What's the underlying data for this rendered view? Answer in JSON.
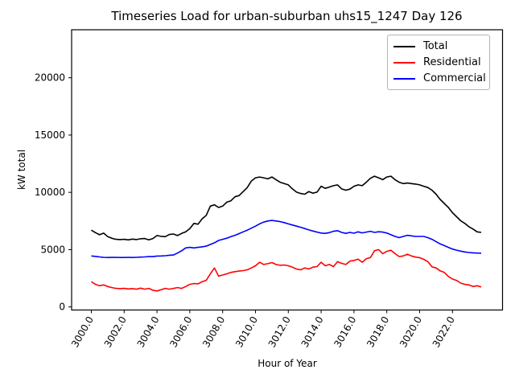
{
  "chart_data": {
    "type": "line",
    "title": "Timeseries Load for urban-suburban uhs15_1247  Day 126",
    "xlabel": "Hour of Year",
    "ylabel": "kW total",
    "xlim": [
      2998.8,
      3025.05
    ],
    "ylim": [
      -270,
      24190
    ],
    "xticks": [
      3000,
      3002,
      3004,
      3006,
      3008,
      3010,
      3012,
      3014,
      3016,
      3018,
      3020,
      3022
    ],
    "yticks": [
      0,
      5000,
      10000,
      15000,
      20000
    ],
    "xtick_rotation": 60,
    "grid": false,
    "legend_position": "upper right",
    "x": [
      3000,
      3000.25,
      3000.5,
      3000.75,
      3001,
      3001.25,
      3001.5,
      3001.75,
      3002,
      3002.25,
      3002.5,
      3002.75,
      3003,
      3003.25,
      3003.5,
      3003.75,
      3004,
      3004.25,
      3004.5,
      3004.75,
      3005,
      3005.25,
      3005.5,
      3005.75,
      3006,
      3006.25,
      3006.5,
      3006.75,
      3007,
      3007.25,
      3007.5,
      3007.75,
      3008,
      3008.25,
      3008.5,
      3008.75,
      3009,
      3009.25,
      3009.5,
      3009.75,
      3010,
      3010.25,
      3010.5,
      3010.75,
      3011,
      3011.25,
      3011.5,
      3011.75,
      3012,
      3012.25,
      3012.5,
      3012.75,
      3013,
      3013.25,
      3013.5,
      3013.75,
      3014,
      3014.25,
      3014.5,
      3014.75,
      3015,
      3015.25,
      3015.5,
      3015.75,
      3016,
      3016.25,
      3016.5,
      3016.75,
      3017,
      3017.25,
      3017.5,
      3017.75,
      3018,
      3018.25,
      3018.5,
      3018.75,
      3019,
      3019.25,
      3019.5,
      3019.75,
      3020,
      3020.25,
      3020.5,
      3020.75,
      3021,
      3021.25,
      3021.5,
      3021.75,
      3022,
      3022.25,
      3022.5,
      3022.75,
      3023,
      3023.25,
      3023.5,
      3023.75
    ],
    "series": [
      {
        "name": "Total",
        "color": "#000000",
        "values": [
          6700,
          6480,
          6300,
          6440,
          6130,
          5990,
          5900,
          5880,
          5900,
          5850,
          5920,
          5880,
          5950,
          5970,
          5850,
          5970,
          6230,
          6160,
          6130,
          6320,
          6365,
          6230,
          6410,
          6550,
          6830,
          7290,
          7220,
          7690,
          7990,
          8800,
          8910,
          8680,
          8800,
          9140,
          9260,
          9610,
          9720,
          10070,
          10420,
          10990,
          11270,
          11340,
          11270,
          11180,
          11340,
          11110,
          10880,
          10760,
          10650,
          10300,
          10020,
          9900,
          9840,
          10070,
          9930,
          10020,
          10530,
          10350,
          10460,
          10580,
          10650,
          10300,
          10190,
          10280,
          10530,
          10650,
          10580,
          10880,
          11230,
          11410,
          11270,
          11110,
          11340,
          11410,
          11110,
          10880,
          10760,
          10810,
          10760,
          10720,
          10650,
          10530,
          10420,
          10190,
          9840,
          9380,
          9030,
          8680,
          8220,
          7870,
          7520,
          7290,
          7000,
          6800,
          6550,
          6500
        ]
      },
      {
        "name": "Residential",
        "color": "#ff0000",
        "values": [
          2200,
          1970,
          1850,
          1920,
          1780,
          1690,
          1620,
          1600,
          1620,
          1570,
          1600,
          1550,
          1640,
          1550,
          1620,
          1460,
          1390,
          1500,
          1620,
          1550,
          1620,
          1690,
          1620,
          1780,
          1970,
          2040,
          2010,
          2200,
          2320,
          2890,
          3400,
          2690,
          2780,
          2890,
          3010,
          3080,
          3130,
          3170,
          3240,
          3400,
          3590,
          3900,
          3700,
          3770,
          3870,
          3700,
          3630,
          3660,
          3590,
          3470,
          3300,
          3240,
          3400,
          3310,
          3470,
          3520,
          3900,
          3590,
          3700,
          3520,
          3950,
          3800,
          3700,
          4000,
          4050,
          4170,
          3900,
          4210,
          4300,
          4900,
          5000,
          4650,
          4850,
          4950,
          4650,
          4400,
          4450,
          4600,
          4450,
          4350,
          4300,
          4150,
          3950,
          3500,
          3400,
          3150,
          3010,
          2660,
          2430,
          2310,
          2080,
          1970,
          1920,
          1780,
          1850,
          1740
        ]
      },
      {
        "name": "Commercial",
        "color": "#0000ff",
        "values": [
          4450,
          4410,
          4360,
          4330,
          4310,
          4320,
          4330,
          4310,
          4310,
          4330,
          4310,
          4330,
          4350,
          4360,
          4400,
          4390,
          4440,
          4450,
          4470,
          4510,
          4530,
          4700,
          4900,
          5150,
          5200,
          5150,
          5200,
          5250,
          5300,
          5450,
          5600,
          5800,
          5900,
          6000,
          6130,
          6250,
          6400,
          6550,
          6700,
          6875,
          7050,
          7250,
          7400,
          7500,
          7550,
          7500,
          7440,
          7360,
          7250,
          7150,
          7050,
          6950,
          6840,
          6720,
          6620,
          6530,
          6450,
          6420,
          6480,
          6600,
          6650,
          6500,
          6420,
          6500,
          6430,
          6550,
          6460,
          6530,
          6600,
          6500,
          6560,
          6530,
          6450,
          6300,
          6150,
          6050,
          6150,
          6250,
          6200,
          6150,
          6150,
          6150,
          6050,
          5900,
          5700,
          5500,
          5350,
          5200,
          5050,
          4950,
          4870,
          4800,
          4750,
          4720,
          4700,
          4690
        ]
      }
    ]
  }
}
